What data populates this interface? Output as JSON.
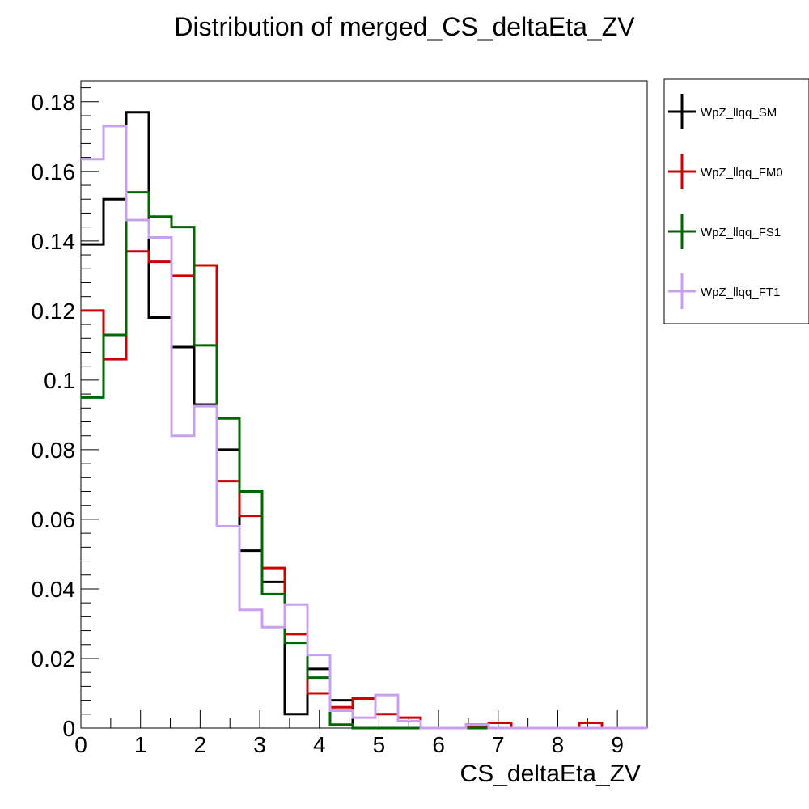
{
  "chart_data": {
    "type": "histogram",
    "title": "Distribution of merged_CS_deltaEta_ZV",
    "xlabel": "CS_deltaEta_ZV",
    "ylabel": "",
    "xlim": [
      0,
      9.5
    ],
    "ylim": [
      0,
      0.186
    ],
    "bin_edges": [
      0,
      0.38,
      0.76,
      1.14,
      1.52,
      1.9,
      2.28,
      2.66,
      3.04,
      3.42,
      3.8,
      4.18,
      4.56,
      4.94,
      5.32,
      5.7,
      6.08,
      6.46,
      6.84,
      7.22,
      7.6,
      7.98,
      8.36,
      8.74,
      9.12,
      9.5
    ],
    "x_ticks": [
      0,
      1,
      2,
      3,
      4,
      5,
      6,
      7,
      8,
      9
    ],
    "x_tick_labels": [
      "0",
      "1",
      "2",
      "3",
      "4",
      "5",
      "6",
      "7",
      "8",
      "9"
    ],
    "y_ticks": [
      0,
      0.02,
      0.04,
      0.06,
      0.08,
      0.1,
      0.12,
      0.14,
      0.16,
      0.18
    ],
    "y_tick_labels": [
      "0",
      "0.02",
      "0.04",
      "0.06",
      "0.08",
      "0.1",
      "0.12",
      "0.14",
      "0.16",
      "0.18"
    ],
    "grid": false,
    "legend_position": "right, outside plot",
    "series": [
      {
        "name": "WpZ_llqq_SM",
        "color": "#000000",
        "values": [
          0.139,
          0.152,
          0.177,
          0.118,
          0.1095,
          0.093,
          0.08,
          0.051,
          0.042,
          0.004,
          0.017,
          0.008,
          0.0,
          0.0,
          0.0,
          0.0,
          0.0,
          0.001,
          0.0,
          0.0,
          0.0,
          0.0,
          0.0,
          0.0,
          0.0
        ]
      },
      {
        "name": "WpZ_llqq_FM0",
        "color": "#cc0000",
        "values": [
          0.12,
          0.106,
          0.137,
          0.134,
          0.13,
          0.133,
          0.071,
          0.061,
          0.046,
          0.027,
          0.01,
          0.006,
          0.0085,
          0.004,
          0.003,
          0.0,
          0.0,
          0.0005,
          0.0015,
          0.0,
          0.0,
          0.0,
          0.0015,
          0.0,
          0.0
        ]
      },
      {
        "name": "WpZ_llqq_FS1",
        "color": "#006600",
        "values": [
          0.095,
          0.113,
          0.154,
          0.147,
          0.144,
          0.11,
          0.089,
          0.068,
          0.0385,
          0.0245,
          0.0145,
          0.001,
          0.0,
          0.0,
          0.0,
          0.0,
          0.0,
          0.0,
          0.0,
          0.0,
          0.0,
          0.0,
          0.0,
          0.0,
          0.0
        ]
      },
      {
        "name": "WpZ_llqq_FT1",
        "color": "#c8a0f0",
        "values": [
          0.1635,
          0.173,
          0.146,
          0.141,
          0.084,
          0.0925,
          0.058,
          0.034,
          0.029,
          0.0355,
          0.021,
          0.005,
          0.003,
          0.0095,
          0.002,
          0.0,
          0.0,
          0.001,
          0.0,
          0.0,
          0.0,
          0.0,
          0.0,
          0.0,
          0.0
        ]
      }
    ]
  }
}
